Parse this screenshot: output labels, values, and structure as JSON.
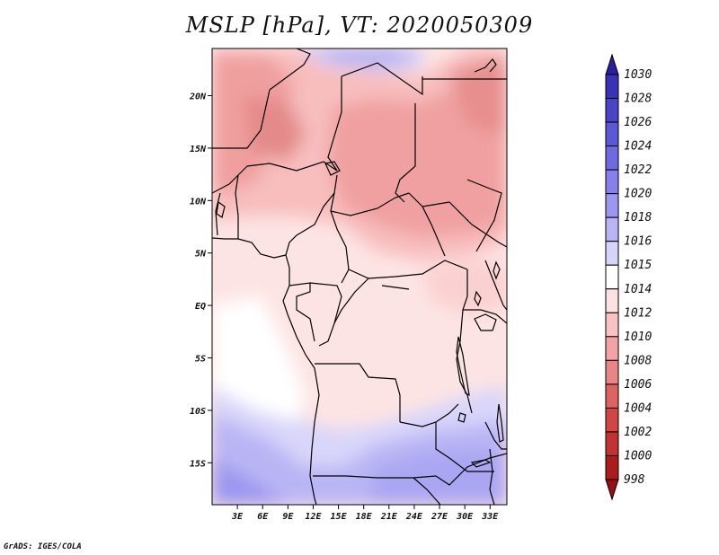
{
  "title": "MSLP [hPa], VT: 2020050309",
  "footer": "GrADS: IGES/COLA",
  "map": {
    "field": "MSLP",
    "units": "hPa",
    "valid_time": "2020050309",
    "lon_range": [
      0,
      35
    ],
    "lat_range": [
      -19,
      24.5
    ],
    "lat_ticks": [
      "20N",
      "15N",
      "10N",
      "5N",
      "EQ",
      "5S",
      "10S",
      "15S"
    ],
    "lon_ticks": [
      "3E",
      "6E",
      "9E",
      "12E",
      "15E",
      "18E",
      "21E",
      "24E",
      "27E",
      "30E",
      "33E"
    ]
  },
  "colorbar": {
    "labels": [
      "1030",
      "1028",
      "1026",
      "1024",
      "1022",
      "1020",
      "1018",
      "1016",
      "1015",
      "1014",
      "1012",
      "1010",
      "1008",
      "1006",
      "1004",
      "1002",
      "1000",
      "998"
    ],
    "colors": [
      "#2a1fa0",
      "#3a32b5",
      "#4a45c8",
      "#5a58d6",
      "#6e6be0",
      "#8580ea",
      "#9c97f0",
      "#b8b4f5",
      "#d6d4fa",
      "#ffffff",
      "#fde2e2",
      "#f9c3c3",
      "#f3a3a3",
      "#e98585",
      "#dd6262",
      "#d14545",
      "#c33232",
      "#ad1c1c",
      "#951010"
    ]
  }
}
